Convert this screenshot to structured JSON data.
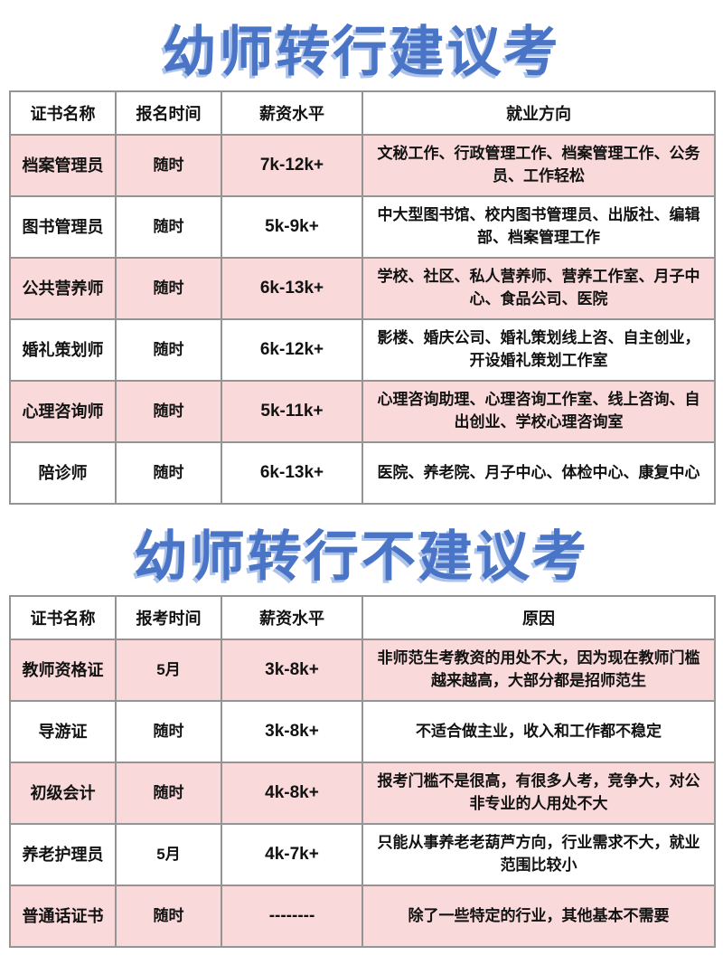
{
  "colors": {
    "title_blue": "#4a74c6",
    "title_shadow_blue": "#aec3ea",
    "row_pink": "#f9d9d9",
    "row_white": "#ffffff",
    "border_gray": "#949494",
    "text_black": "#121212"
  },
  "section1": {
    "title": "幼师转行建议考",
    "table": {
      "headers": [
        "证书名称",
        "报名时间",
        "薪资水平",
        "就业方向"
      ],
      "rows": [
        [
          "档案管理员",
          "随时",
          "7k-12k+",
          "文秘工作、行政管理工作、档案管理工作、公务员、工作轻松"
        ],
        [
          "图书管理员",
          "随时",
          "5k-9k+",
          "中大型图书馆、校内图书管理员、出版社、编辑部、档案管理工作"
        ],
        [
          "公共营养师",
          "随时",
          "6k-13k+",
          "学校、社区、私人营养师、营养工作室、月子中心、食品公司、医院"
        ],
        [
          "婚礼策划师",
          "随时",
          "6k-12k+",
          "影楼、婚庆公司、婚礼策划线上咨、自主创业，开设婚礼策划工作室"
        ],
        [
          "心理咨询师",
          "随时",
          "5k-11k+",
          "心理咨询助理、心理咨询工作室、线上咨询、自出创业、学校心理咨询室"
        ],
        [
          "陪诊师",
          "随时",
          "6k-13k+",
          "医院、养老院、月子中心、体检中心、康复中心"
        ]
      ]
    }
  },
  "section2": {
    "title": "幼师转行不建议考",
    "table": {
      "headers": [
        "证书名称",
        "报考时间",
        "薪资水平",
        "原因"
      ],
      "rows": [
        [
          "教师资格证",
          "5月",
          "3k-8k+",
          "非师范生考教资的用处不大，因为现在教师门槛越来越高，大部分都是招师范生"
        ],
        [
          "导游证",
          "随时",
          "3k-8k+",
          "不适合做主业，收入和工作都不稳定"
        ],
        [
          "初级会计",
          "随时",
          "4k-8k+",
          "报考门槛不是很高，有很多人考，竞争大，对公非专业的人用处不大"
        ],
        [
          "养老护理员",
          "5月",
          "4k-7k+",
          "只能从事养老老葫芦方向，行业需求不大，就业范围比较小"
        ],
        [
          "普通话证书",
          "随时",
          "--------",
          "除了一些特定的行业，其他基本不需要"
        ]
      ]
    }
  }
}
